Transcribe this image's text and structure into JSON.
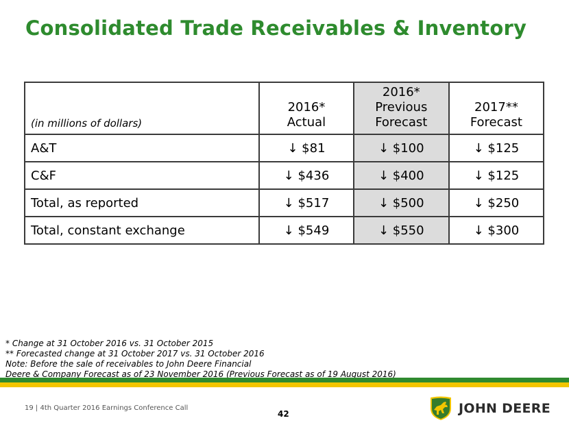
{
  "title": "Consolidated Trade Receivables & Inventory",
  "table": {
    "units": "(in millions of dollars)",
    "headers": [
      {
        "lines": [
          "2016*",
          "Actual"
        ]
      },
      {
        "lines": [
          "2016*",
          "Previous",
          "Forecast"
        ]
      },
      {
        "lines": [
          "2017**",
          "Forecast"
        ]
      }
    ],
    "rows": [
      {
        "label": "A&T",
        "values": [
          "↓ $81",
          "↓ $100",
          "↓ $125"
        ]
      },
      {
        "label": "C&F",
        "values": [
          "↓ $436",
          "↓ $400",
          "↓ $125"
        ]
      },
      {
        "label": "Total, as reported",
        "values": [
          "↓ $517",
          "↓ $500",
          "↓ $250"
        ]
      },
      {
        "label": "Total, constant exchange",
        "values": [
          "↓ $549",
          "↓ $550",
          "↓ $300"
        ]
      }
    ]
  },
  "notes": [
    "* Change at 31 October 2016 vs. 31 October 2015",
    "** Forecasted change at 31 October 2017 vs. 31 October 2016",
    "Note: Before the sale of receivables to John Deere Financial",
    "Deere & Company Forecast as of 23 November 2016 (Previous Forecast as of 19 August 2016)"
  ],
  "footer": {
    "left": "19  |  4th Quarter 2016 Earnings Conference Call",
    "page_number": "42",
    "brand": "JOHN DEERE"
  },
  "colors": {
    "title_green": "#2e8b2e",
    "band_green": "#2f8a2f",
    "band_yellow": "#f2c500",
    "highlight_column": "#dcdcdc"
  },
  "icons": [
    "john-deere-logo-icon"
  ]
}
